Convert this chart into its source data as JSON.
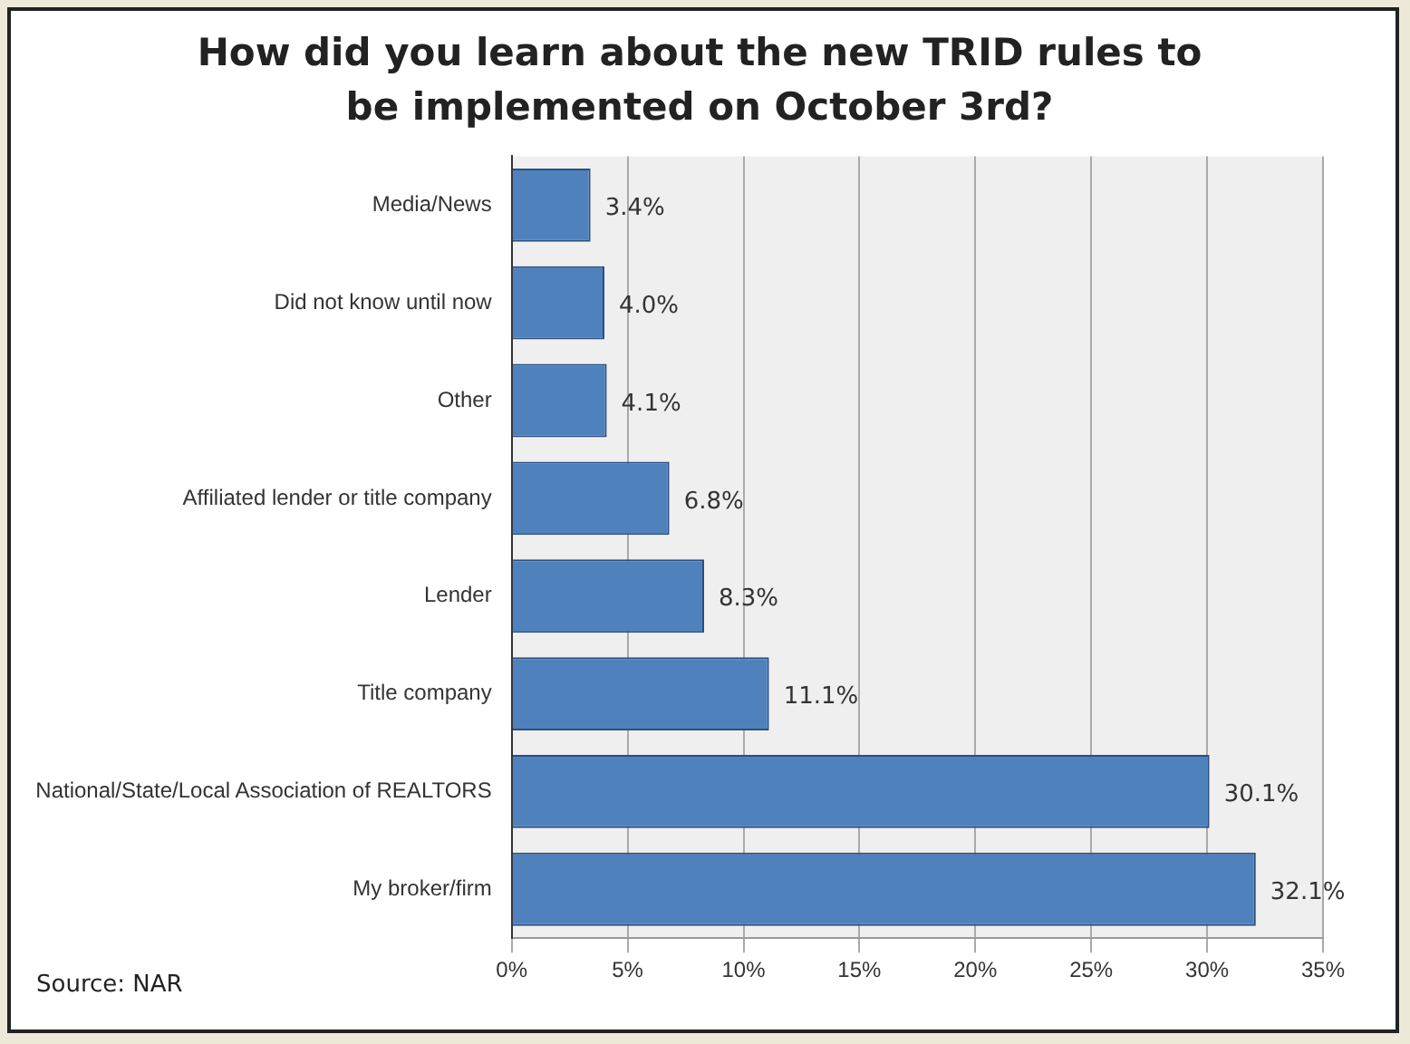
{
  "chart_data": {
    "type": "bar",
    "orientation": "horizontal",
    "title": "How did you learn about the new TRID rules to be implemented on October 3rd?",
    "categories": [
      "Media/News",
      "Did not know until now",
      "Other",
      "Affiliated lender or title company",
      "Lender",
      "Title company",
      "National/State/Local Association of REALTORS",
      "My broker/firm"
    ],
    "values": [
      3.4,
      4.0,
      4.1,
      6.8,
      8.3,
      11.1,
      30.1,
      32.1
    ],
    "value_labels": [
      "3.4%",
      "4.0%",
      "4.1%",
      "6.8%",
      "8.3%",
      "11.1%",
      "30.1%",
      "32.1%"
    ],
    "color": "#4f81bd",
    "xlim": [
      0,
      35
    ],
    "xticks": [
      {
        "value": 0,
        "label": "0%"
      },
      {
        "value": 5,
        "label": "5%"
      },
      {
        "value": 10,
        "label": "10%"
      },
      {
        "value": 15,
        "label": "15%"
      },
      {
        "value": 20,
        "label": "20%"
      },
      {
        "value": 25,
        "label": "25%"
      },
      {
        "value": 30,
        "label": "30%"
      },
      {
        "value": 35,
        "label": "35%"
      }
    ],
    "grid": "x",
    "annotations": [
      "Source: NAR"
    ]
  }
}
